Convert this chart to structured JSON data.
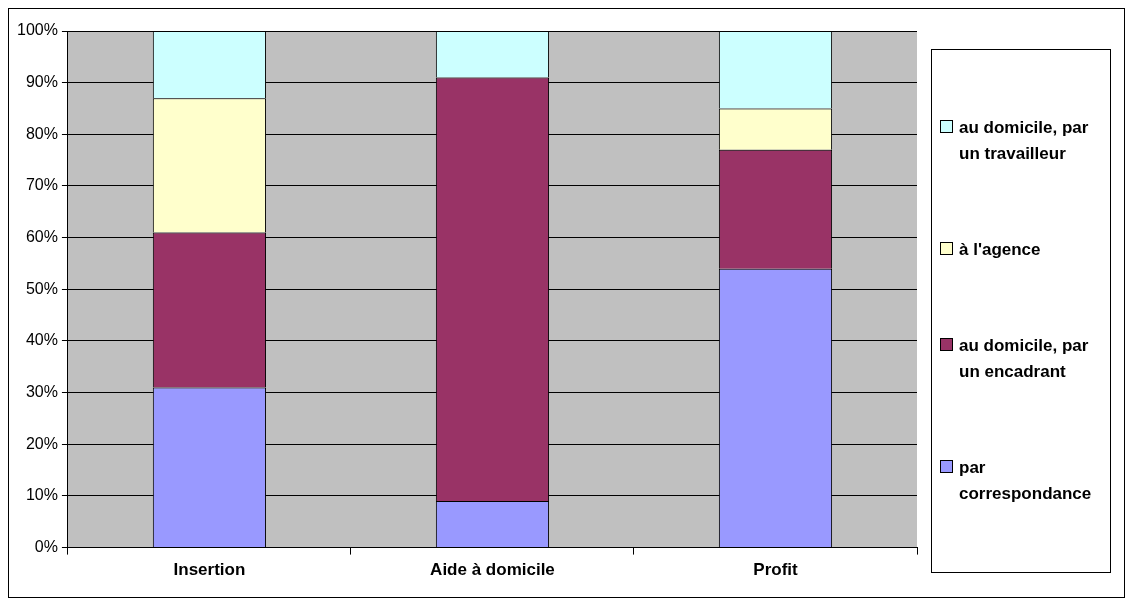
{
  "chart_data": {
    "type": "bar",
    "stacked": true,
    "categories": [
      "Insertion",
      "Aide à domicile",
      "Profit"
    ],
    "series": [
      {
        "name": "par correspondance",
        "color": "#9999ff",
        "values": [
          31,
          9,
          54
        ]
      },
      {
        "name": "au domicile, par un encadrant",
        "color": "#993366",
        "values": [
          30,
          82,
          23
        ]
      },
      {
        "name": "à l'agence",
        "color": "#ffffcc",
        "values": [
          26,
          0,
          8
        ]
      },
      {
        "name": "au domicile, par un travailleur",
        "color": "#ccffff",
        "values": [
          13,
          9,
          15
        ]
      }
    ],
    "ylim": [
      0,
      100
    ],
    "yticks": [
      {
        "value": 0,
        "label": "0%"
      },
      {
        "value": 10,
        "label": "10%"
      },
      {
        "value": 20,
        "label": "20%"
      },
      {
        "value": 30,
        "label": "30%"
      },
      {
        "value": 40,
        "label": "40%"
      },
      {
        "value": 50,
        "label": "50%"
      },
      {
        "value": 60,
        "label": "60%"
      },
      {
        "value": 70,
        "label": "70%"
      },
      {
        "value": 80,
        "label": "80%"
      },
      {
        "value": 90,
        "label": "90%"
      },
      {
        "value": 100,
        "label": "100%"
      }
    ],
    "grid": "y",
    "legend": "right"
  }
}
